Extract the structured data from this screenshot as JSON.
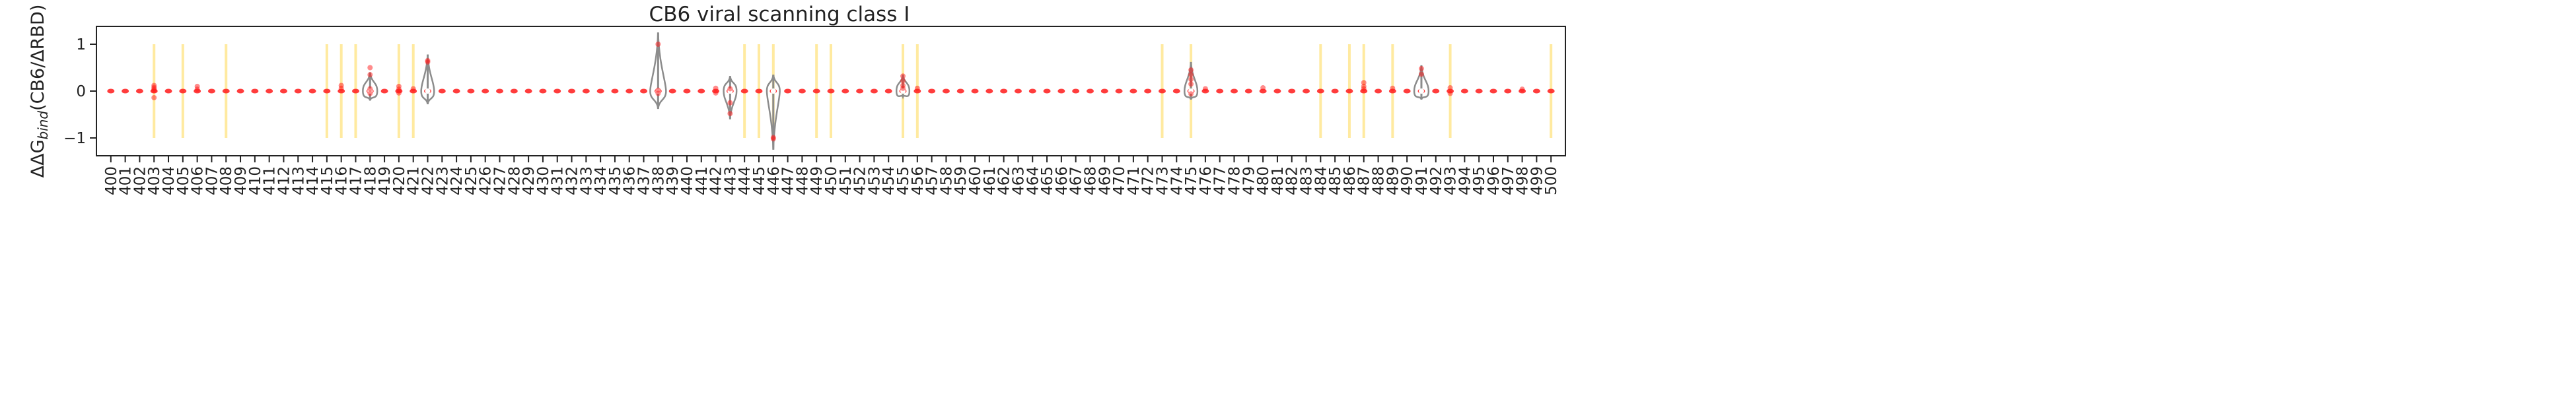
{
  "chart_data": {
    "type": "violin",
    "title": "CB6 viral scanning class I",
    "ylabel_parts": [
      "ΔΔG",
      "bind",
      "(CB6/ΔRBD)"
    ],
    "xlabel": "",
    "xlim": [
      399,
      501
    ],
    "ylim": [
      -1.38,
      1.38
    ],
    "y_ticks": [
      -1,
      0,
      1
    ],
    "x_start": 400,
    "x_end": 500,
    "grid": false,
    "legend": "none",
    "colors": {
      "points": "#ff1a1a",
      "violin": "#8c8c8c",
      "highlight": "#ffeaa0",
      "axis": "#222222"
    },
    "highlight_positions": [
      403,
      405,
      408,
      415,
      416,
      417,
      420,
      421,
      444,
      445,
      446,
      449,
      450,
      455,
      456,
      473,
      475,
      484,
      486,
      487,
      489,
      493,
      500
    ],
    "highlight_range": [
      -1,
      1
    ],
    "violins": [
      {
        "x": 418,
        "min": -0.2,
        "max": 0.4,
        "width": 0.5
      },
      {
        "x": 422,
        "min": -0.28,
        "max": 0.78,
        "width": 0.45
      },
      {
        "x": 438,
        "min": -0.38,
        "max": 1.25,
        "width": 0.55
      },
      {
        "x": 443,
        "min": -0.6,
        "max": 0.32,
        "width": 0.45
      },
      {
        "x": 446,
        "min": -1.25,
        "max": 0.35,
        "width": 0.45
      },
      {
        "x": 455,
        "min": -0.12,
        "max": 0.35,
        "width": 0.45
      },
      {
        "x": 475,
        "min": -0.18,
        "max": 0.62,
        "width": 0.45
      },
      {
        "x": 491,
        "min": -0.18,
        "max": 0.55,
        "width": 0.5
      }
    ],
    "points": [
      {
        "x": 403,
        "y": 0.08
      },
      {
        "x": 403,
        "y": 0.05
      },
      {
        "x": 403,
        "y": -0.14
      },
      {
        "x": 403,
        "y": 0.12
      },
      {
        "x": 403,
        "y": 0.02
      },
      {
        "x": 406,
        "y": 0.1
      },
      {
        "x": 406,
        "y": 0.04
      },
      {
        "x": 416,
        "y": 0.12
      },
      {
        "x": 416,
        "y": 0.06
      },
      {
        "x": 418,
        "y": 0.5
      },
      {
        "x": 418,
        "y": 0.35
      },
      {
        "x": 418,
        "y": 0.05
      },
      {
        "x": 418,
        "y": -0.05
      },
      {
        "x": 420,
        "y": 0.1
      },
      {
        "x": 420,
        "y": 0.04
      },
      {
        "x": 420,
        "y": -0.04
      },
      {
        "x": 421,
        "y": 0.05
      },
      {
        "x": 422,
        "y": 0.65
      },
      {
        "x": 422,
        "y": 0.62
      },
      {
        "x": 438,
        "y": 1.0
      },
      {
        "x": 438,
        "y": 0.02
      },
      {
        "x": 438,
        "y": -0.05
      },
      {
        "x": 442,
        "y": 0.06
      },
      {
        "x": 442,
        "y": -0.04
      },
      {
        "x": 443,
        "y": -0.25
      },
      {
        "x": 443,
        "y": -0.48
      },
      {
        "x": 443,
        "y": 0.05
      },
      {
        "x": 446,
        "y": -0.99
      },
      {
        "x": 446,
        "y": -1.02
      },
      {
        "x": 455,
        "y": 0.32
      },
      {
        "x": 455,
        "y": 0.22
      },
      {
        "x": 455,
        "y": 0.12
      },
      {
        "x": 455,
        "y": 0.06
      },
      {
        "x": 456,
        "y": 0.06
      },
      {
        "x": 475,
        "y": 0.45
      },
      {
        "x": 475,
        "y": 0.35
      },
      {
        "x": 475,
        "y": 0.25
      },
      {
        "x": 475,
        "y": 0.15
      },
      {
        "x": 475,
        "y": -0.06
      },
      {
        "x": 476,
        "y": 0.05
      },
      {
        "x": 480,
        "y": 0.07
      },
      {
        "x": 487,
        "y": 0.18
      },
      {
        "x": 487,
        "y": 0.1
      },
      {
        "x": 487,
        "y": 0.05
      },
      {
        "x": 489,
        "y": 0.06
      },
      {
        "x": 491,
        "y": 0.48
      },
      {
        "x": 491,
        "y": 0.36
      },
      {
        "x": 493,
        "y": 0.07
      },
      {
        "x": 493,
        "y": -0.05
      },
      {
        "x": 498,
        "y": 0.04
      }
    ]
  }
}
